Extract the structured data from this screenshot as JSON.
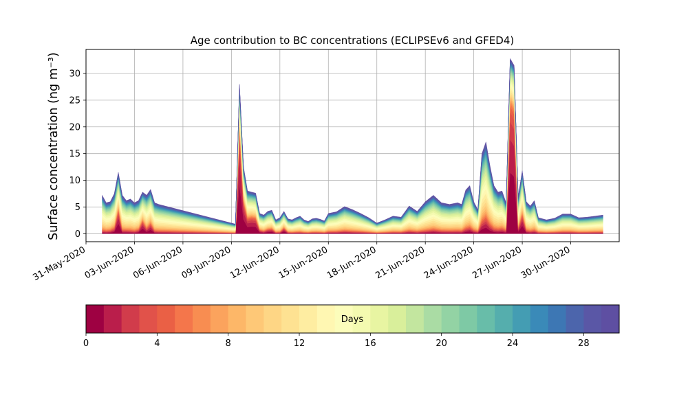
{
  "chart_data": {
    "type": "area",
    "title": "Age contribution to BC concentrations (ECLIPSEv6 and GFED4)",
    "ylabel": "Surface concentration (ng m⁻³)",
    "xlabel": "",
    "xlim": [
      "2020-05-31",
      "2020-07-03"
    ],
    "ylim": [
      -1.5,
      34.5
    ],
    "yticks": [
      0,
      5,
      10,
      15,
      20,
      25,
      30
    ],
    "ytick_labels": [
      "0",
      "5",
      "10",
      "15",
      "20",
      "25",
      "30"
    ],
    "xticks": [
      "2020-05-31",
      "2020-06-03",
      "2020-06-06",
      "2020-06-09",
      "2020-06-12",
      "2020-06-15",
      "2020-06-18",
      "2020-06-21",
      "2020-06-24",
      "2020-06-27",
      "2020-06-30"
    ],
    "xtick_labels": [
      "31-May-2020",
      "03-Jun-2020",
      "06-Jun-2020",
      "09-Jun-2020",
      "12-Jun-2020",
      "15-Jun-2020",
      "18-Jun-2020",
      "21-Jun-2020",
      "24-Jun-2020",
      "27-Jun-2020",
      "30-Jun-2020"
    ],
    "grid": true,
    "stacked_by": "age in days (0-30)",
    "x": [
      "2020-06-01 00:00",
      "2020-06-01 06:00",
      "2020-06-01 12:00",
      "2020-06-01 18:00",
      "2020-06-02 00:00",
      "2020-06-02 06:00",
      "2020-06-02 12:00",
      "2020-06-02 18:00",
      "2020-06-03 00:00",
      "2020-06-03 06:00",
      "2020-06-03 12:00",
      "2020-06-03 18:00",
      "2020-06-04 00:00",
      "2020-06-04 06:00",
      "2020-06-04 12:00",
      "2020-06-09 00:00",
      "2020-06-09 06:00",
      "2020-06-09 12:00",
      "2020-06-09 18:00",
      "2020-06-10 00:00",
      "2020-06-10 06:00",
      "2020-06-10 12:00",
      "2020-06-10 18:00",
      "2020-06-11 00:00",
      "2020-06-11 06:00",
      "2020-06-11 12:00",
      "2020-06-11 18:00",
      "2020-06-12 00:00",
      "2020-06-12 06:00",
      "2020-06-12 12:00",
      "2020-06-12 18:00",
      "2020-06-13 00:00",
      "2020-06-13 06:00",
      "2020-06-13 12:00",
      "2020-06-13 18:00",
      "2020-06-14 00:00",
      "2020-06-14 06:00",
      "2020-06-14 12:00",
      "2020-06-14 18:00",
      "2020-06-15 00:00",
      "2020-06-15 12:00",
      "2020-06-16 00:00",
      "2020-06-16 12:00",
      "2020-06-17 00:00",
      "2020-06-17 12:00",
      "2020-06-18 00:00",
      "2020-06-18 12:00",
      "2020-06-19 00:00",
      "2020-06-19 12:00",
      "2020-06-20 00:00",
      "2020-06-20 12:00",
      "2020-06-21 00:00",
      "2020-06-21 12:00",
      "2020-06-22 00:00",
      "2020-06-22 12:00",
      "2020-06-23 00:00",
      "2020-06-23 06:00",
      "2020-06-23 12:00",
      "2020-06-23 18:00",
      "2020-06-24 00:00",
      "2020-06-24 06:00",
      "2020-06-24 12:00",
      "2020-06-24 18:00",
      "2020-06-25 00:00",
      "2020-06-25 06:00",
      "2020-06-25 12:00",
      "2020-06-25 18:00",
      "2020-06-26 00:00",
      "2020-06-26 06:00",
      "2020-06-26 12:00",
      "2020-06-26 18:00",
      "2020-06-27 00:00",
      "2020-06-27 06:00",
      "2020-06-27 12:00",
      "2020-06-27 18:00",
      "2020-06-28 00:00",
      "2020-06-28 12:00",
      "2020-06-29 00:00",
      "2020-06-29 12:00",
      "2020-06-30 00:00",
      "2020-06-30 12:00",
      "2020-07-01 00:00",
      "2020-07-01 12:00",
      "2020-07-02 00:00"
    ],
    "total_concentration": [
      7.2,
      5.8,
      6.0,
      7.5,
      11.5,
      7.2,
      6.2,
      6.5,
      5.8,
      6.2,
      7.8,
      7.2,
      8.3,
      5.8,
      5.5,
      2.0,
      1.8,
      28.0,
      12.5,
      8.0,
      7.8,
      7.6,
      3.8,
      3.5,
      4.2,
      4.4,
      2.6,
      3.0,
      4.2,
      2.8,
      2.6,
      3.0,
      3.3,
      2.6,
      2.3,
      2.8,
      2.9,
      2.7,
      2.4,
      3.8,
      4.1,
      5.1,
      4.5,
      3.8,
      3.0,
      2.0,
      2.6,
      3.3,
      3.1,
      5.2,
      4.2,
      6.0,
      7.2,
      5.8,
      5.5,
      5.8,
      5.5,
      8.2,
      9.0,
      6.0,
      4.5,
      15.0,
      17.2,
      12.8,
      9.0,
      7.8,
      8.0,
      5.8,
      32.8,
      31.5,
      7.0,
      11.8,
      6.0,
      5.2,
      6.2,
      3.0,
      2.6,
      2.9,
      3.7,
      3.7,
      3.0,
      3.1,
      3.3,
      3.5
    ],
    "fresh_fraction_0_5_days": [
      0.05,
      0.05,
      0.07,
      0.12,
      0.45,
      0.06,
      0.08,
      0.06,
      0.05,
      0.1,
      0.35,
      0.12,
      0.25,
      0.06,
      0.05,
      0.05,
      0.05,
      0.78,
      0.55,
      0.42,
      0.46,
      0.45,
      0.18,
      0.12,
      0.2,
      0.22,
      0.06,
      0.07,
      0.28,
      0.06,
      0.05,
      0.06,
      0.06,
      0.05,
      0.05,
      0.06,
      0.06,
      0.06,
      0.05,
      0.06,
      0.06,
      0.07,
      0.06,
      0.06,
      0.05,
      0.05,
      0.05,
      0.06,
      0.06,
      0.07,
      0.06,
      0.06,
      0.08,
      0.06,
      0.06,
      0.06,
      0.06,
      0.1,
      0.12,
      0.08,
      0.06,
      0.15,
      0.18,
      0.12,
      0.08,
      0.08,
      0.1,
      0.08,
      0.82,
      0.8,
      0.15,
      0.35,
      0.08,
      0.06,
      0.07,
      0.06,
      0.05,
      0.06,
      0.06,
      0.06,
      0.05,
      0.05,
      0.06,
      0.06
    ],
    "colorbar": {
      "label": "Days",
      "min": 0,
      "max": 30,
      "levels": 30,
      "ticks": [
        0,
        4,
        8,
        12,
        16,
        20,
        24,
        28
      ],
      "tick_labels": [
        "0",
        "4",
        "8",
        "12",
        "16",
        "20",
        "24",
        "28"
      ],
      "colormap": "Spectral",
      "colors": [
        "#9e0142",
        "#ba1e4b",
        "#d13c4b",
        "#e1524a",
        "#ea6045",
        "#f4764b",
        "#f88d51",
        "#fba35d",
        "#fdb768",
        "#fec877",
        "#fed685",
        "#fee292",
        "#feeda1",
        "#fff7b2",
        "#fcfdbb",
        "#f4fab0",
        "#e8f5a2",
        "#d9ef9b",
        "#c3e69f",
        "#aadca4",
        "#93d3a4",
        "#7ec9a5",
        "#68bda9",
        "#55aead",
        "#449db3",
        "#3a8ab8",
        "#3d77b4",
        "#4c65ac",
        "#5a57a6",
        "#5e4fa2"
      ]
    }
  }
}
